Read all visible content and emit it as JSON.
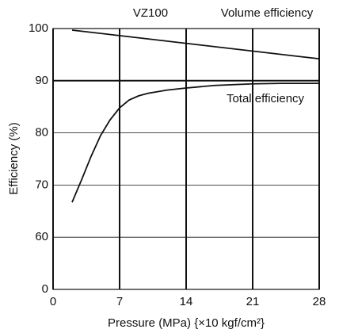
{
  "chart_data": {
    "type": "line",
    "title": "VZ100",
    "xlabel": "Pressure (MPa) {×10 kgf/cm²}",
    "ylabel": "Efficiency (%)",
    "xlim": [
      0,
      28
    ],
    "xticks": [
      0,
      7,
      14,
      21,
      28
    ],
    "ylim": [
      0,
      100
    ],
    "yticks": [
      0,
      60,
      70,
      80,
      90,
      100
    ],
    "grid": true,
    "series": [
      {
        "name": "Volume efficiency",
        "color": "#111111",
        "x": [
          2,
          28
        ],
        "values": [
          99.7,
          94.2
        ]
      },
      {
        "name": "Total efficiency",
        "color": "#111111",
        "x": [
          2,
          3,
          4,
          5,
          6,
          7,
          8,
          9,
          10,
          12,
          14,
          17,
          21,
          24,
          28
        ],
        "values": [
          66.7,
          71,
          75.5,
          79.5,
          82.5,
          84.8,
          86.3,
          87.1,
          87.6,
          88.2,
          88.6,
          89.1,
          89.4,
          89.5,
          89.5
        ]
      }
    ]
  }
}
